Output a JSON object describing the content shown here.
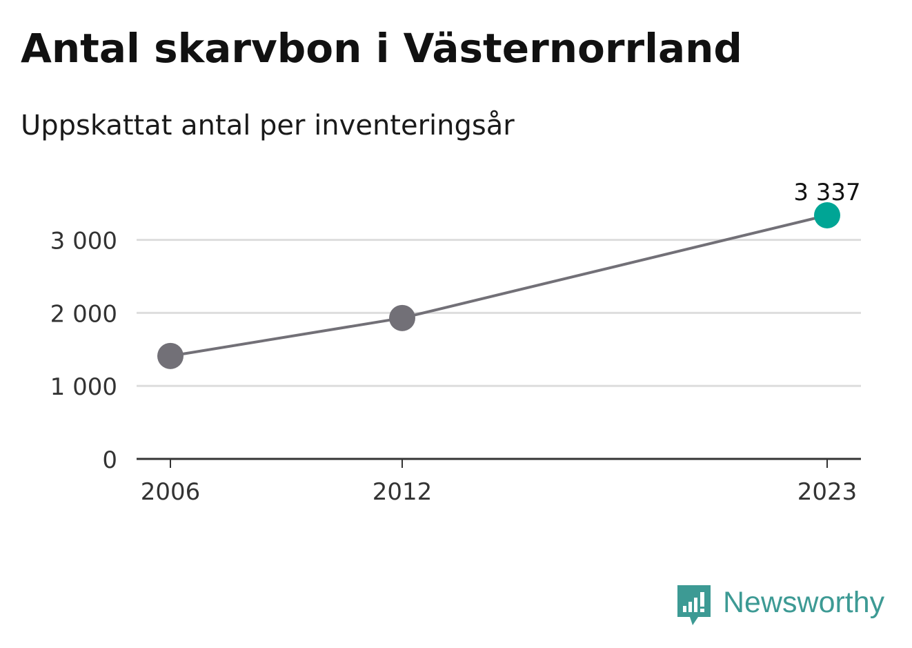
{
  "chart_data": {
    "type": "line",
    "title": "Antal skarvbon i Västernorrland",
    "subtitle": "Uppskattat antal per inventeringsår",
    "x": [
      2006,
      2012,
      2023
    ],
    "values": [
      1410,
      1930,
      3337
    ],
    "x_ticks": [
      "2006",
      "2012",
      "2023"
    ],
    "y_ticks": [
      {
        "value": 0,
        "label": "0"
      },
      {
        "value": 1000,
        "label": "1 000"
      },
      {
        "value": 2000,
        "label": "2 000"
      },
      {
        "value": 3000,
        "label": "3 000"
      }
    ],
    "ylim": [
      0,
      3337
    ],
    "grid": true,
    "annotations": [
      {
        "x": 2023,
        "label": "3 337"
      }
    ],
    "colors": {
      "line": "#727077",
      "point": "#727077",
      "highlight": "#00a595",
      "grid": "#dddddd",
      "axis": "#333333",
      "tick_text": "#333333"
    }
  },
  "brand": {
    "name": "Newsworthy",
    "icon": "newsworthy-logo-icon",
    "color": "#3d9a94"
  }
}
